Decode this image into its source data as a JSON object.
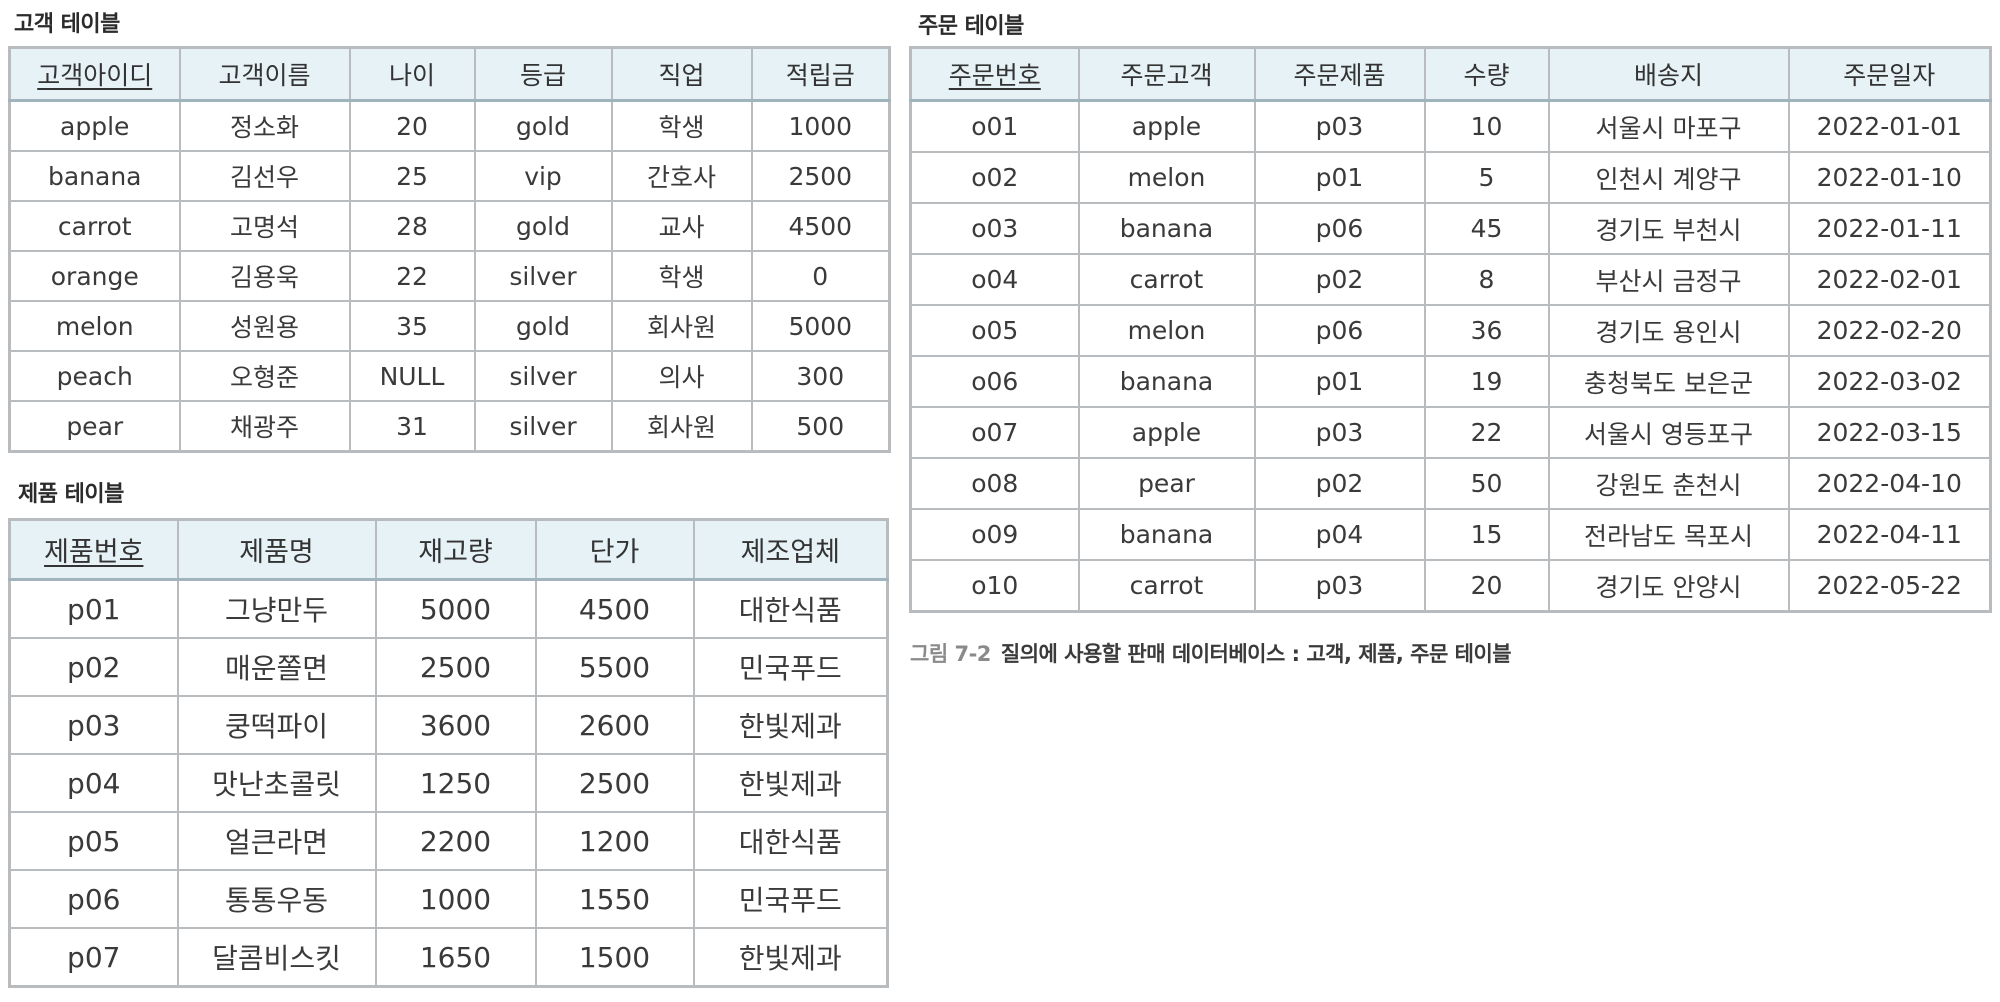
{
  "customer": {
    "title": "고객 테이블",
    "columns": [
      "고객아이디",
      "고객이름",
      "나이",
      "등급",
      "직업",
      "적립금"
    ],
    "rows": [
      [
        "apple",
        "정소화",
        "20",
        "gold",
        "학생",
        "1000"
      ],
      [
        "banana",
        "김선우",
        "25",
        "vip",
        "간호사",
        "2500"
      ],
      [
        "carrot",
        "고명석",
        "28",
        "gold",
        "교사",
        "4500"
      ],
      [
        "orange",
        "김용욱",
        "22",
        "silver",
        "학생",
        "0"
      ],
      [
        "melon",
        "성원용",
        "35",
        "gold",
        "회사원",
        "5000"
      ],
      [
        "peach",
        "오형준",
        "NULL",
        "silver",
        "의사",
        "300"
      ],
      [
        "pear",
        "채광주",
        "31",
        "silver",
        "회사원",
        "500"
      ]
    ]
  },
  "product": {
    "title": "제품 테이블",
    "columns": [
      "제품번호",
      "제품명",
      "재고량",
      "단가",
      "제조업체"
    ],
    "rows": [
      [
        "p01",
        "그냥만두",
        "5000",
        "4500",
        "대한식품"
      ],
      [
        "p02",
        "매운쫄면",
        "2500",
        "5500",
        "민국푸드"
      ],
      [
        "p03",
        "쿵떡파이",
        "3600",
        "2600",
        "한빛제과"
      ],
      [
        "p04",
        "맛난초콜릿",
        "1250",
        "2500",
        "한빛제과"
      ],
      [
        "p05",
        "얼큰라면",
        "2200",
        "1200",
        "대한식품"
      ],
      [
        "p06",
        "통통우동",
        "1000",
        "1550",
        "민국푸드"
      ],
      [
        "p07",
        "달콤비스킷",
        "1650",
        "1500",
        "한빛제과"
      ]
    ]
  },
  "order": {
    "title": "주문 테이블",
    "columns": [
      "주문번호",
      "주문고객",
      "주문제품",
      "수량",
      "배송지",
      "주문일자"
    ],
    "rows": [
      [
        "o01",
        "apple",
        "p03",
        "10",
        "서울시 마포구",
        "2022-01-01"
      ],
      [
        "o02",
        "melon",
        "p01",
        "5",
        "인천시 계양구",
        "2022-01-10"
      ],
      [
        "o03",
        "banana",
        "p06",
        "45",
        "경기도 부천시",
        "2022-01-11"
      ],
      [
        "o04",
        "carrot",
        "p02",
        "8",
        "부산시 금정구",
        "2022-02-01"
      ],
      [
        "o05",
        "melon",
        "p06",
        "36",
        "경기도 용인시",
        "2022-02-20"
      ],
      [
        "o06",
        "banana",
        "p01",
        "19",
        "충청북도 보은군",
        "2022-03-02"
      ],
      [
        "o07",
        "apple",
        "p03",
        "22",
        "서울시 영등포구",
        "2022-03-15"
      ],
      [
        "o08",
        "pear",
        "p02",
        "50",
        "강원도 춘천시",
        "2022-04-10"
      ],
      [
        "o09",
        "banana",
        "p04",
        "15",
        "전라남도 목포시",
        "2022-04-11"
      ],
      [
        "o10",
        "carrot",
        "p03",
        "20",
        "경기도 안양시",
        "2022-05-22"
      ]
    ]
  },
  "figure_caption": {
    "number": "그림 7-2",
    "text": "질의에 사용할 판매 데이터베이스 : 고객, 제품, 주문 테이블"
  }
}
